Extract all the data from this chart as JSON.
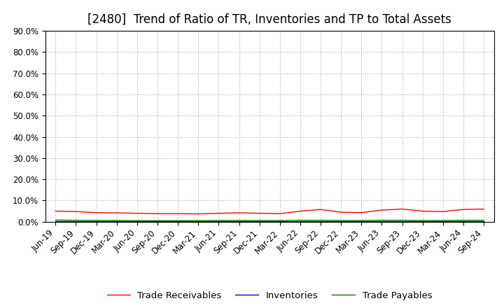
{
  "title": "[2480]  Trend of Ratio of TR, Inventories and TP to Total Assets",
  "ylim": [
    0,
    0.9
  ],
  "yticks": [
    0.0,
    0.1,
    0.2,
    0.3,
    0.4,
    0.5,
    0.6,
    0.7,
    0.8,
    0.9
  ],
  "ytick_labels": [
    "0.0%",
    "10.0%",
    "20.0%",
    "30.0%",
    "40.0%",
    "50.0%",
    "60.0%",
    "70.0%",
    "80.0%",
    "90.0%"
  ],
  "x_labels": [
    "Jun-19",
    "Sep-19",
    "Dec-19",
    "Mar-20",
    "Jun-20",
    "Sep-20",
    "Dec-20",
    "Mar-21",
    "Jun-21",
    "Sep-21",
    "Dec-21",
    "Mar-22",
    "Jun-22",
    "Sep-22",
    "Dec-22",
    "Mar-23",
    "Jun-23",
    "Sep-23",
    "Dec-23",
    "Mar-24",
    "Jun-24",
    "Sep-24"
  ],
  "trade_receivables": [
    0.05,
    0.048,
    0.043,
    0.042,
    0.04,
    0.038,
    0.038,
    0.037,
    0.04,
    0.042,
    0.04,
    0.038,
    0.05,
    0.058,
    0.045,
    0.043,
    0.055,
    0.06,
    0.05,
    0.048,
    0.058,
    0.06
  ],
  "inventories": [
    0.002,
    0.002,
    0.002,
    0.002,
    0.002,
    0.002,
    0.002,
    0.002,
    0.002,
    0.002,
    0.002,
    0.002,
    0.002,
    0.002,
    0.002,
    0.002,
    0.002,
    0.002,
    0.002,
    0.002,
    0.002,
    0.002
  ],
  "trade_payables": [
    0.008,
    0.007,
    0.006,
    0.006,
    0.005,
    0.005,
    0.005,
    0.005,
    0.006,
    0.006,
    0.006,
    0.006,
    0.007,
    0.007,
    0.006,
    0.006,
    0.007,
    0.007,
    0.006,
    0.006,
    0.007,
    0.007
  ],
  "tr_color": "#FF0000",
  "inv_color": "#0000CC",
  "tp_color": "#008000",
  "tr_label": "Trade Receivables",
  "inv_label": "Inventories",
  "tp_label": "Trade Payables",
  "background_color": "#FFFFFF",
  "plot_bg_color": "#FFFFFF",
  "grid_color": "#AAAAAA",
  "title_fontsize": 12,
  "tick_fontsize": 8.5,
  "legend_fontsize": 9.5
}
